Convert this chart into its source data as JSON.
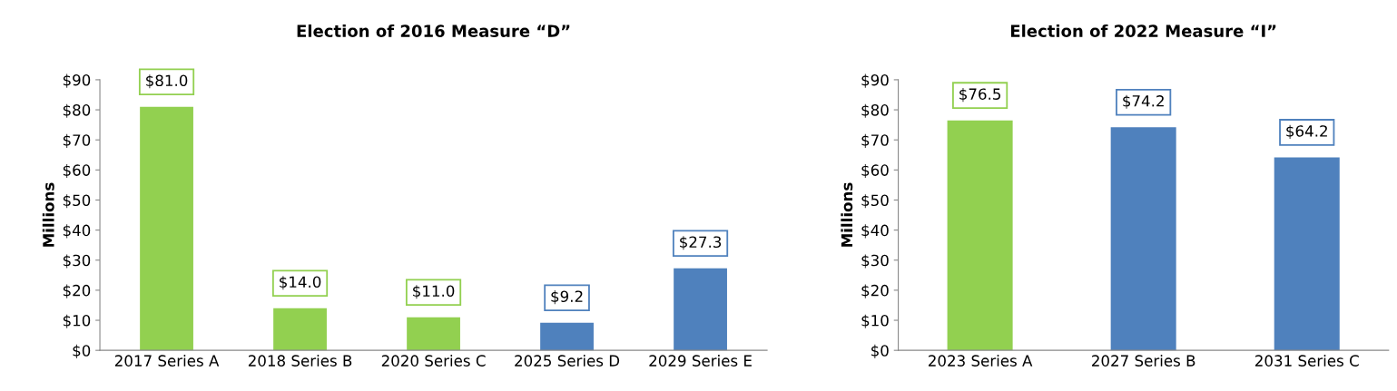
{
  "chart_data": [
    {
      "type": "bar",
      "title": "Election of 2016 Measure “D”",
      "ylabel": "Millions",
      "categories": [
        "2017 Series A",
        "2018 Series B",
        "2020 Series C",
        "2025 Series D",
        "2029 Series E"
      ],
      "values": [
        81.0,
        14.0,
        11.0,
        9.2,
        27.3
      ],
      "colors": [
        "#92d050",
        "#92d050",
        "#92d050",
        "#4f81bd",
        "#4f81bd"
      ],
      "value_labels": [
        "$81.0",
        "$14.0",
        "$11.0",
        "$9.2",
        "$27.3"
      ],
      "ylim": [
        0,
        90
      ],
      "yticks": [
        {
          "value": 0,
          "label": "$0"
        },
        {
          "value": 10,
          "label": "$10"
        },
        {
          "value": 20,
          "label": "$20"
        },
        {
          "value": 30,
          "label": "$30"
        },
        {
          "value": 40,
          "label": "$40"
        },
        {
          "value": 50,
          "label": "$50"
        },
        {
          "value": 60,
          "label": "$60"
        },
        {
          "value": 70,
          "label": "$70"
        },
        {
          "value": 80,
          "label": "$80"
        },
        {
          "value": 90,
          "label": "$90"
        }
      ],
      "grid": false,
      "legend": false
    },
    {
      "type": "bar",
      "title": "Election of 2022 Measure “I”",
      "ylabel": "Millions",
      "categories": [
        "2023 Series A",
        "2027 Series B",
        "2031 Series C"
      ],
      "values": [
        76.5,
        74.2,
        64.2
      ],
      "colors": [
        "#92d050",
        "#4f81bd",
        "#4f81bd"
      ],
      "value_labels": [
        "$76.5",
        "$74.2",
        "$64.2"
      ],
      "ylim": [
        0,
        90
      ],
      "yticks": [
        {
          "value": 0,
          "label": "$0"
        },
        {
          "value": 10,
          "label": "$10"
        },
        {
          "value": 20,
          "label": "$20"
        },
        {
          "value": 30,
          "label": "$30"
        },
        {
          "value": 40,
          "label": "$40"
        },
        {
          "value": 50,
          "label": "$50"
        },
        {
          "value": 60,
          "label": "$60"
        },
        {
          "value": 70,
          "label": "$70"
        },
        {
          "value": 80,
          "label": "$80"
        },
        {
          "value": 90,
          "label": "$90"
        }
      ],
      "grid": false,
      "legend": false
    }
  ]
}
